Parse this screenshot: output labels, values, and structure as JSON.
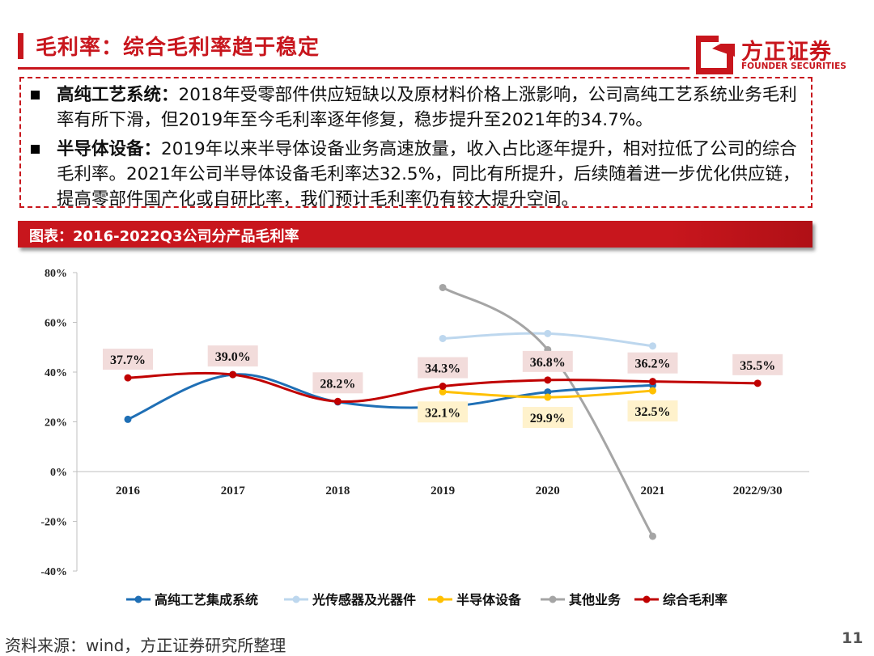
{
  "header": {
    "title": "毛利率：综合毛利率趋于稳定",
    "logo_cn": "方正证券",
    "logo_en": "FOUNDER SECURITIES"
  },
  "summary": [
    {
      "heading": "高纯工艺系统：",
      "text": "2018年受零部件供应短缺以及原材料价格上涨影响，公司高纯工艺系统业务毛利率有所下滑，但2019年至今毛利率逐年修复，稳步提升至2021年的34.7%。"
    },
    {
      "heading": "半导体设备：",
      "text": "2019年以来半导体设备业务高速放量，收入占比逐年提升，相对拉低了公司的综合毛利率。2021年公司半导体设备毛利率达32.5%，同比有所提升，后续随着进一步优化供应链，提高零部件国产化或自研比率，我们预计毛利率仍有较大提升空间。"
    }
  ],
  "figure": {
    "title": "图表：2016-2022Q3公司分产品毛利率"
  },
  "colors": {
    "brand": "#c8161d",
    "label_bg_red": "#f2dcdb",
    "label_bg_yellow": "#fff2cc"
  },
  "chart_data": {
    "type": "line",
    "title": "图表：2016-2022Q3公司分产品毛利率",
    "categories": [
      "2016",
      "2017",
      "2018",
      "2019",
      "2020",
      "2021",
      "2022/9/30"
    ],
    "y_ticks": [
      "80%",
      "60%",
      "40%",
      "20%",
      "0%",
      "-20%",
      "-40%"
    ],
    "ylim": [
      -40,
      80
    ],
    "xlabel": "",
    "ylabel": "",
    "legend_position": "bottom",
    "series": [
      {
        "name": "高纯工艺集成系统",
        "color": "#1f6fb5",
        "values": [
          21,
          39,
          28,
          26,
          32,
          34.7,
          null
        ],
        "labels": []
      },
      {
        "name": "光传感器及光器件",
        "color": "#bdd7ee",
        "values": [
          null,
          null,
          null,
          53.5,
          55.5,
          50.5,
          null
        ],
        "labels": []
      },
      {
        "name": "半导体设备",
        "color": "#ffc000",
        "values": [
          null,
          null,
          null,
          32.1,
          29.9,
          32.5,
          null
        ],
        "labels": [
          "",
          "",
          "",
          "32.1%",
          "29.9%",
          "32.5%",
          ""
        ]
      },
      {
        "name": "其他业务",
        "color": "#a5a5a5",
        "values": [
          null,
          null,
          null,
          74,
          49,
          -26,
          null
        ],
        "labels": []
      },
      {
        "name": "综合毛利率",
        "color": "#c00000",
        "values": [
          37.7,
          39.0,
          28.2,
          34.3,
          36.8,
          36.2,
          35.5
        ],
        "labels": [
          "37.7%",
          "39.0%",
          "28.2%",
          "34.3%",
          "36.8%",
          "36.2%",
          "35.5%"
        ]
      }
    ]
  },
  "footer": {
    "source": "资料来源：wind，方正证券研究所整理",
    "page_number": "11"
  }
}
